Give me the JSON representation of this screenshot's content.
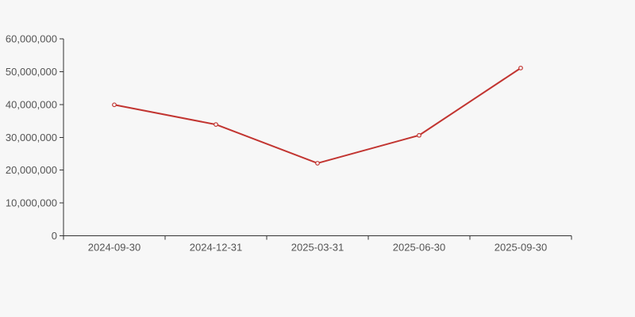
{
  "chart": {
    "background_color": "#f7f7f7",
    "axis_color": "#333333",
    "label_color": "#545454",
    "line_color": "#c23531",
    "marker_fill_color": "#f7f7f7",
    "marker_shape": "hollow-circle"
  },
  "chart_data": {
    "type": "line",
    "title": "",
    "xlabel": "",
    "ylabel": "",
    "categories": [
      "2024-09-30",
      "2024-12-31",
      "2025-03-31",
      "2025-06-30",
      "2025-09-30"
    ],
    "series": [
      {
        "name": "",
        "values": [
          39900000,
          33900000,
          22100000,
          30600000,
          51100000
        ]
      }
    ],
    "ylim": [
      0,
      60000000
    ],
    "y_tick_step": 10000000,
    "y_tick_labels": [
      "0",
      "10,000,000",
      "20,000,000",
      "30,000,000",
      "40,000,000",
      "50,000,000",
      "60,000,000"
    ],
    "grid": false,
    "legend": false
  }
}
